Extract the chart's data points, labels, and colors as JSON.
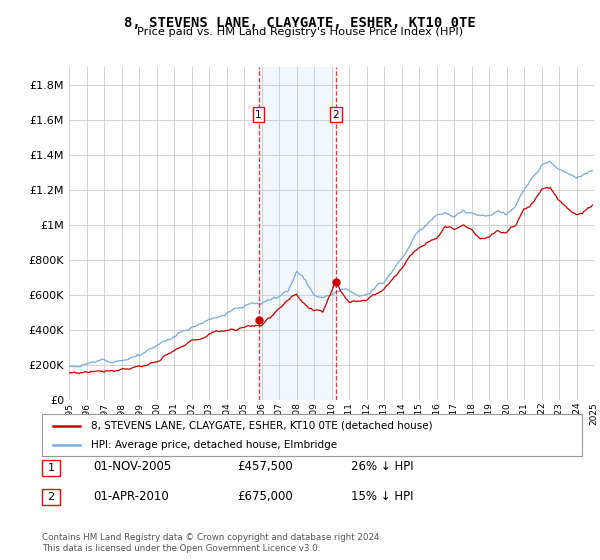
{
  "title": "8, STEVENS LANE, CLAYGATE, ESHER, KT10 0TE",
  "subtitle": "Price paid vs. HM Land Registry's House Price Index (HPI)",
  "ylim": [
    0,
    1900000
  ],
  "yticks": [
    0,
    200000,
    400000,
    600000,
    800000,
    1000000,
    1200000,
    1400000,
    1600000,
    1800000
  ],
  "ytick_labels": [
    "£0",
    "£200K",
    "£400K",
    "£600K",
    "£800K",
    "£1M",
    "£1.2M",
    "£1.4M",
    "£1.6M",
    "£1.8M"
  ],
  "grid_color": "#cccccc",
  "hpi_color": "#7aaadd",
  "price_color": "#cc0000",
  "transaction1_year": 2005.833,
  "transaction2_year": 2010.25,
  "transaction1_price": 457500,
  "transaction2_price": 675000,
  "legend_label1": "8, STEVENS LANE, CLAYGATE, ESHER, KT10 0TE (detached house)",
  "legend_label2": "HPI: Average price, detached house, Elmbridge",
  "footer": "Contains HM Land Registry data © Crown copyright and database right 2024.\nThis data is licensed under the Open Government Licence v3.0.",
  "start_year": 1995,
  "end_year": 2025,
  "hpi_seed": 12,
  "price_seed": 77,
  "hpi_keypoints": [
    [
      1995.0,
      195000
    ],
    [
      1996.0,
      210000
    ],
    [
      1997.0,
      230000
    ],
    [
      1998.0,
      260000
    ],
    [
      1999.0,
      295000
    ],
    [
      2000.0,
      340000
    ],
    [
      2001.0,
      390000
    ],
    [
      2002.0,
      450000
    ],
    [
      2003.0,
      510000
    ],
    [
      2004.0,
      560000
    ],
    [
      2005.0,
      590000
    ],
    [
      2005.5,
      610000
    ],
    [
      2006.0,
      620000
    ],
    [
      2007.0,
      650000
    ],
    [
      2007.5,
      680000
    ],
    [
      2008.0,
      800000
    ],
    [
      2008.5,
      760000
    ],
    [
      2009.0,
      680000
    ],
    [
      2009.5,
      670000
    ],
    [
      2010.0,
      700000
    ],
    [
      2010.5,
      730000
    ],
    [
      2011.0,
      740000
    ],
    [
      2011.5,
      720000
    ],
    [
      2012.0,
      730000
    ],
    [
      2013.0,
      800000
    ],
    [
      2014.0,
      950000
    ],
    [
      2015.0,
      1100000
    ],
    [
      2016.0,
      1200000
    ],
    [
      2016.5,
      1230000
    ],
    [
      2017.0,
      1210000
    ],
    [
      2017.5,
      1250000
    ],
    [
      2018.0,
      1230000
    ],
    [
      2018.5,
      1210000
    ],
    [
      2019.0,
      1220000
    ],
    [
      2019.5,
      1250000
    ],
    [
      2020.0,
      1230000
    ],
    [
      2020.5,
      1260000
    ],
    [
      2021.0,
      1350000
    ],
    [
      2021.5,
      1420000
    ],
    [
      2022.0,
      1480000
    ],
    [
      2022.5,
      1500000
    ],
    [
      2023.0,
      1450000
    ],
    [
      2023.5,
      1420000
    ],
    [
      2024.0,
      1380000
    ],
    [
      2024.5,
      1400000
    ],
    [
      2025.0,
      1420000
    ]
  ],
  "price_keypoints": [
    [
      1995.0,
      155000
    ],
    [
      1996.0,
      165000
    ],
    [
      1997.0,
      185000
    ],
    [
      1998.0,
      210000
    ],
    [
      1999.0,
      235000
    ],
    [
      2000.0,
      265000
    ],
    [
      2001.0,
      305000
    ],
    [
      2002.0,
      350000
    ],
    [
      2003.0,
      390000
    ],
    [
      2004.0,
      420000
    ],
    [
      2005.0,
      440000
    ],
    [
      2005.83,
      457500
    ],
    [
      2006.0,
      460000
    ],
    [
      2006.5,
      490000
    ],
    [
      2007.0,
      560000
    ],
    [
      2007.5,
      600000
    ],
    [
      2008.0,
      620000
    ],
    [
      2008.5,
      545000
    ],
    [
      2009.0,
      500000
    ],
    [
      2009.5,
      490000
    ],
    [
      2010.25,
      675000
    ],
    [
      2010.5,
      620000
    ],
    [
      2011.0,
      560000
    ],
    [
      2011.5,
      580000
    ],
    [
      2012.0,
      590000
    ],
    [
      2013.0,
      650000
    ],
    [
      2014.0,
      780000
    ],
    [
      2015.0,
      900000
    ],
    [
      2016.0,
      980000
    ],
    [
      2016.5,
      1050000
    ],
    [
      2017.0,
      1020000
    ],
    [
      2017.5,
      1060000
    ],
    [
      2018.0,
      1040000
    ],
    [
      2018.5,
      1000000
    ],
    [
      2019.0,
      1010000
    ],
    [
      2019.5,
      1040000
    ],
    [
      2020.0,
      1020000
    ],
    [
      2020.5,
      1060000
    ],
    [
      2021.0,
      1150000
    ],
    [
      2021.5,
      1200000
    ],
    [
      2022.0,
      1280000
    ],
    [
      2022.5,
      1290000
    ],
    [
      2023.0,
      1220000
    ],
    [
      2023.5,
      1180000
    ],
    [
      2024.0,
      1150000
    ],
    [
      2024.5,
      1180000
    ],
    [
      2025.0,
      1200000
    ]
  ]
}
